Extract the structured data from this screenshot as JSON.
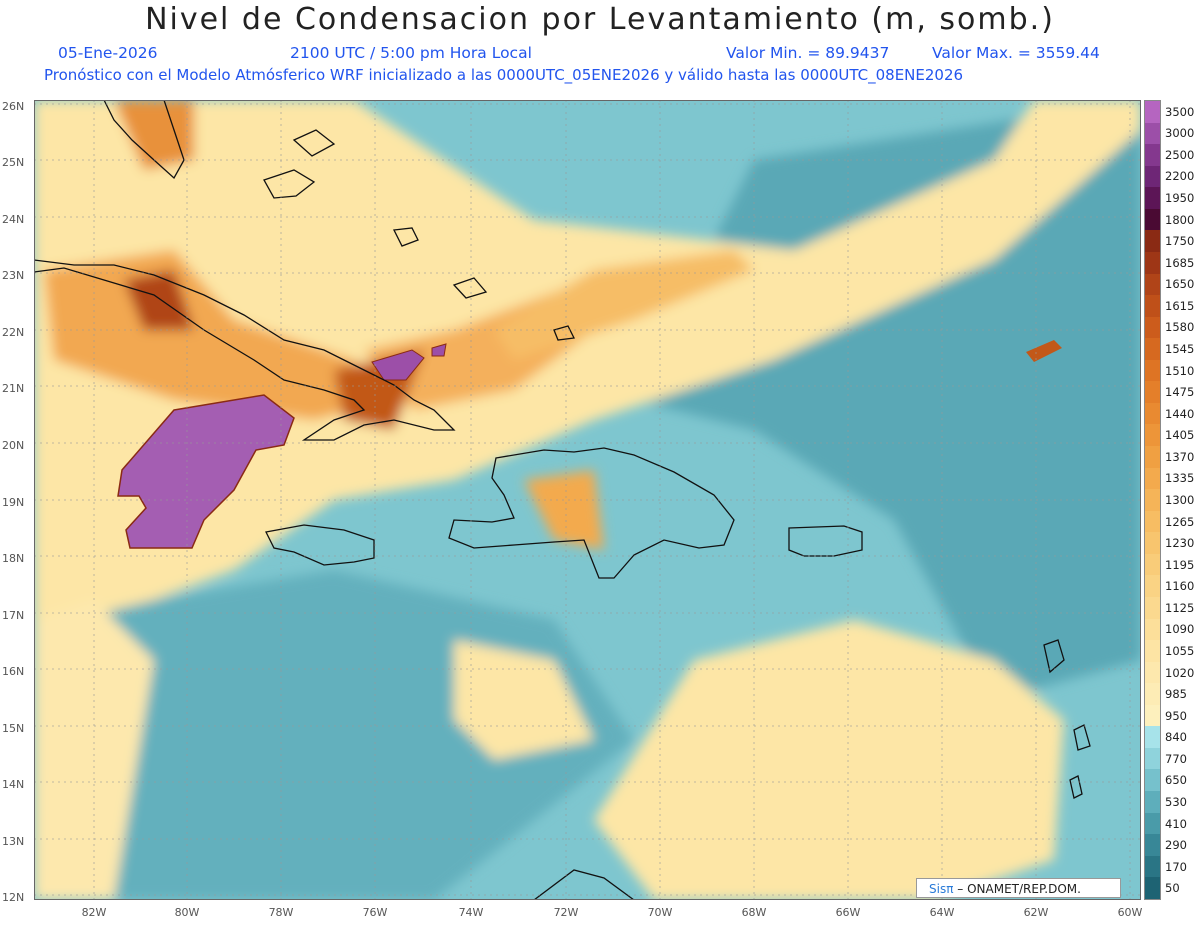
{
  "header": {
    "title": "Nivel de Condensacion por Levantamiento (m, somb.)",
    "date": "05-Ene-2026",
    "time": "2100 UTC / 5:00 pm Hora Local",
    "min_label": "Valor Min. = 89.9437",
    "max_label": "Valor Max. = 3559.44",
    "model_line": "Pronóstico con el Modelo Atmósferico WRF inicializado a las 0000UTC_05ENE2026 y válido hasta las  0000UTC_08ENE2026"
  },
  "map": {
    "lat_labels": [
      "26N",
      "25N",
      "24N",
      "23N",
      "22N",
      "21N",
      "20N",
      "19N",
      "18N",
      "17N",
      "16N",
      "15N",
      "14N",
      "13N",
      "12N"
    ],
    "lon_labels": [
      "82W",
      "80W",
      "78W",
      "76W",
      "74W",
      "72W",
      "70W",
      "68W",
      "66W",
      "64W",
      "62W",
      "60W"
    ],
    "grid": "dotted"
  },
  "colorbar": {
    "labels": [
      "3500",
      "3000",
      "2500",
      "2200",
      "1950",
      "1800",
      "1750",
      "1685",
      "1650",
      "1615",
      "1580",
      "1545",
      "1510",
      "1475",
      "1440",
      "1405",
      "1370",
      "1335",
      "1300",
      "1265",
      "1230",
      "1195",
      "1160",
      "1125",
      "1090",
      "1055",
      "1020",
      "985",
      "950",
      "840",
      "770",
      "650",
      "530",
      "410",
      "290",
      "170",
      "50"
    ],
    "colors": [
      "#b565c0",
      "#9c4fa8",
      "#84388e",
      "#6e2676",
      "#5c1556",
      "#4a0a33",
      "#8a2a14",
      "#9e3616",
      "#b04418",
      "#bf5019",
      "#cc5c1c",
      "#d66920",
      "#de7424",
      "#e47f2a",
      "#e98a31",
      "#ed9539",
      "#f0a042",
      "#f3aa4d",
      "#f5b458",
      "#f7bd63",
      "#f8c56e",
      "#f9cc79",
      "#fad384",
      "#fbd98f",
      "#fcdf9a",
      "#fde4a4",
      "#fde8ad",
      "#fdecb5",
      "#fdf0bd",
      "#a7e3ea",
      "#8fd3dc",
      "#76c1cc",
      "#5eaebb",
      "#4a9ba9",
      "#388797",
      "#2a7585",
      "#1e6373"
    ]
  },
  "credit": {
    "logo_text": "Sisπ",
    "text": "– ONAMET/REP.DOM."
  }
}
